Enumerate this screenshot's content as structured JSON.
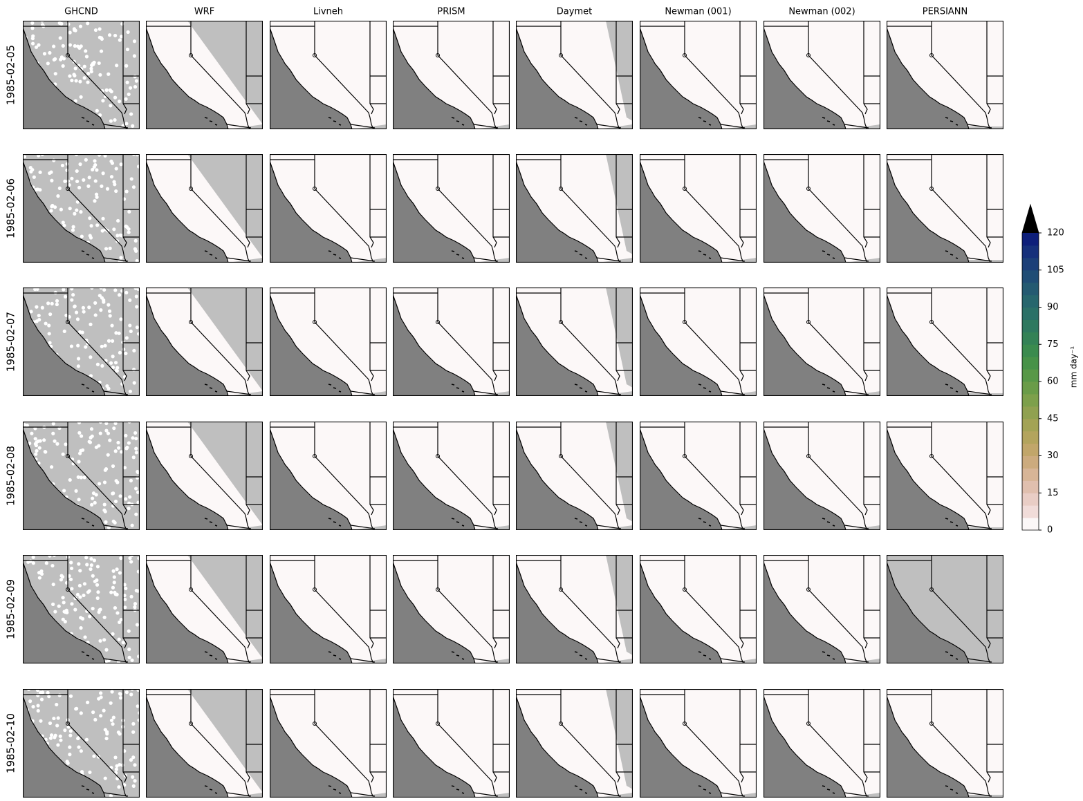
{
  "chart_data": {
    "type": "map-grid",
    "columns": [
      "GHCND",
      "WRF",
      "Livneh",
      "PRISM",
      "Daymet",
      "Newman (001)",
      "Newman (002)",
      "PERSIANN"
    ],
    "rows": [
      "1985-02-05",
      "1985-02-06",
      "1985-02-07",
      "1985-02-08",
      "1985-02-09",
      "1985-02-10"
    ],
    "colorbar": {
      "label": "mm day⁻¹",
      "ylim": [
        0,
        120
      ],
      "yticks": [
        0,
        15,
        30,
        45,
        60,
        75,
        90,
        105,
        120
      ],
      "colors": [
        "#fbf7f7",
        "#f1dcd9",
        "#e9cdc5",
        "#e0bfae",
        "#d7b597",
        "#ccab7e",
        "#c1a66a",
        "#b3a45d",
        "#a3a355",
        "#90a150",
        "#7da04b",
        "#6a9c48",
        "#589847",
        "#479248",
        "#3b8b4e",
        "#348256",
        "#2f795f",
        "#2b7067",
        "#27666d",
        "#245a71",
        "#204d75",
        "#1c3f78",
        "#16307b",
        "#0e1f7a"
      ],
      "extend_color": "#000000"
    }
  }
}
